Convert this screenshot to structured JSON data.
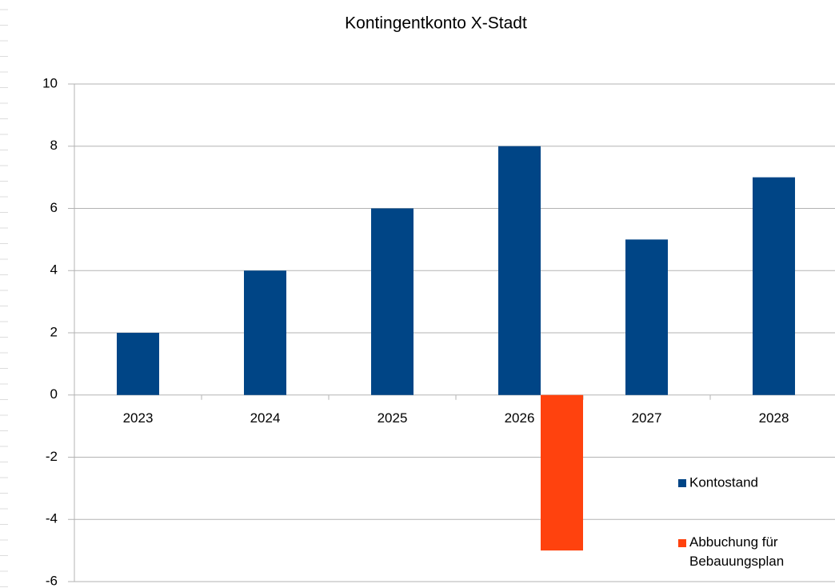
{
  "chart_data": {
    "type": "bar",
    "title": "Kontingentkonto X-Stadt",
    "categories": [
      "2023",
      "2024",
      "2025",
      "2026",
      "2027",
      "2028"
    ],
    "series": [
      {
        "name": "Kontostand",
        "color": "#004586",
        "values": [
          2,
          4,
          6,
          8,
          5,
          7
        ]
      },
      {
        "name": "Abbuchung für\nBebauungsplan",
        "color": "#ff420e",
        "values": [
          null,
          null,
          null,
          -5,
          null,
          null
        ]
      }
    ],
    "ylim": [
      -6,
      10
    ],
    "yticks": [
      -6,
      -4,
      -2,
      0,
      2,
      4,
      6,
      8,
      10
    ],
    "grid": true,
    "legend": "right"
  }
}
